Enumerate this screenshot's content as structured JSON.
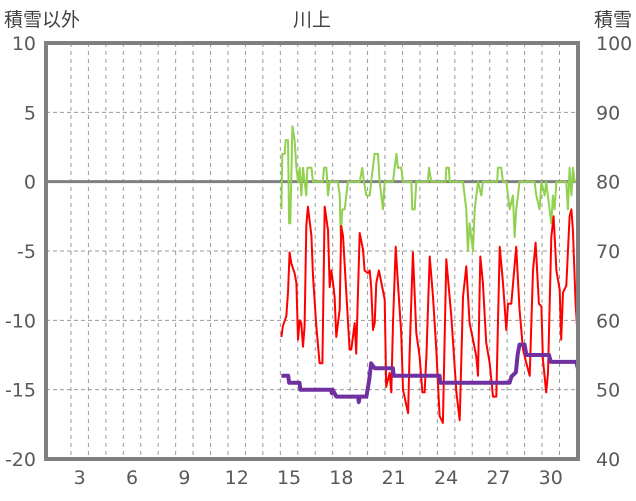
{
  "chart_data": {
    "type": "line",
    "title": "川上",
    "ylabel_left": "積雪以外",
    "ylabel_right": "積雪",
    "xlim": [
      1.07,
      31.56
    ],
    "ylim_left": [
      -20,
      10
    ],
    "ylim_right": [
      40,
      100
    ],
    "x_ticks": [
      3,
      6,
      9,
      12,
      15,
      18,
      21,
      24,
      27,
      30
    ],
    "y_ticks_left": [
      10,
      5,
      0,
      -5,
      -10,
      -15,
      -20
    ],
    "y_ticks_right": [
      100,
      90,
      80,
      70,
      60,
      50,
      40
    ],
    "grid": true,
    "colors": {
      "frame": "#808080",
      "grid": "#808080",
      "zero": "#808080"
    },
    "series": [
      {
        "name": "green",
        "axis": "left",
        "color": "#92D050",
        "points": [
          [
            14.56,
            -2
          ],
          [
            14.61,
            2
          ],
          [
            14.75,
            2
          ],
          [
            14.8,
            3
          ],
          [
            14.94,
            3
          ],
          [
            15.0,
            -3
          ],
          [
            15.07,
            -3
          ],
          [
            15.19,
            4
          ],
          [
            15.32,
            3
          ],
          [
            15.42,
            1
          ],
          [
            15.51,
            0
          ],
          [
            15.61,
            1
          ],
          [
            15.7,
            -1
          ],
          [
            15.8,
            1
          ],
          [
            15.99,
            -1
          ],
          [
            16.05,
            1
          ],
          [
            16.28,
            1
          ],
          [
            16.37,
            0
          ],
          [
            16.94,
            0
          ],
          [
            17.0,
            1
          ],
          [
            17.14,
            1
          ],
          [
            17.23,
            -1
          ],
          [
            17.33,
            0
          ],
          [
            17.8,
            0
          ],
          [
            17.9,
            -1
          ],
          [
            17.96,
            -4
          ],
          [
            18.05,
            -2
          ],
          [
            18.19,
            -2
          ],
          [
            18.28,
            -1
          ],
          [
            18.38,
            0
          ],
          [
            19.05,
            0
          ],
          [
            19.2,
            1
          ],
          [
            19.29,
            0
          ],
          [
            19.43,
            -1
          ],
          [
            19.62,
            -1
          ],
          [
            19.71,
            0
          ],
          [
            19.9,
            2
          ],
          [
            20.1,
            2
          ],
          [
            20.19,
            0
          ],
          [
            20.29,
            -1
          ],
          [
            20.38,
            -2
          ],
          [
            20.48,
            0
          ],
          [
            20.96,
            0
          ],
          [
            21.05,
            1
          ],
          [
            21.15,
            2
          ],
          [
            21.24,
            1
          ],
          [
            21.43,
            1
          ],
          [
            21.53,
            0
          ],
          [
            22.01,
            0
          ],
          [
            22.06,
            -2
          ],
          [
            22.2,
            -2
          ],
          [
            22.29,
            0
          ],
          [
            22.96,
            0
          ],
          [
            23.02,
            1
          ],
          [
            23.15,
            0
          ],
          [
            23.97,
            0
          ],
          [
            24.01,
            1
          ],
          [
            24.16,
            1
          ],
          [
            24.2,
            0
          ],
          [
            24.97,
            0
          ],
          [
            25.06,
            -1
          ],
          [
            25.16,
            -2
          ],
          [
            25.25,
            -5
          ],
          [
            25.35,
            -3
          ],
          [
            25.44,
            -4
          ],
          [
            25.54,
            -5
          ],
          [
            25.64,
            -2
          ],
          [
            25.83,
            0
          ],
          [
            26.02,
            -1
          ],
          [
            26.11,
            0
          ],
          [
            26.93,
            0
          ],
          [
            26.97,
            1
          ],
          [
            27.16,
            1
          ],
          [
            27.26,
            0
          ],
          [
            27.45,
            0
          ],
          [
            27.55,
            -1
          ],
          [
            27.64,
            -2
          ],
          [
            27.83,
            -1
          ],
          [
            27.93,
            -4
          ],
          [
            28.02,
            -2
          ],
          [
            28.12,
            -1
          ],
          [
            28.21,
            0
          ],
          [
            29.07,
            0
          ],
          [
            29.17,
            -1
          ],
          [
            29.36,
            -2
          ],
          [
            29.46,
            0
          ],
          [
            29.65,
            -1
          ],
          [
            29.74,
            0
          ],
          [
            29.93,
            -2
          ],
          [
            30.03,
            -3
          ],
          [
            30.12,
            -1
          ],
          [
            30.22,
            -2
          ],
          [
            30.32,
            0
          ],
          [
            30.89,
            0
          ],
          [
            30.98,
            -2
          ],
          [
            31.08,
            1
          ],
          [
            31.18,
            -1
          ],
          [
            31.27,
            1
          ],
          [
            31.37,
            0
          ],
          [
            31.56,
            0
          ]
        ]
      },
      {
        "name": "red",
        "axis": "left",
        "color": "#FF0000",
        "points": [
          [
            14.56,
            -11.2
          ],
          [
            14.65,
            -10.4
          ],
          [
            14.84,
            -9.7
          ],
          [
            14.94,
            -8.0
          ],
          [
            15.03,
            -5.1
          ],
          [
            15.13,
            -5.9
          ],
          [
            15.32,
            -6.6
          ],
          [
            15.42,
            -7.3
          ],
          [
            15.51,
            -11.4
          ],
          [
            15.61,
            -10.0
          ],
          [
            15.7,
            -10.2
          ],
          [
            15.8,
            -11.9
          ],
          [
            15.89,
            -10.4
          ],
          [
            15.99,
            -3.2
          ],
          [
            16.08,
            -1.8
          ],
          [
            16.28,
            -3.9
          ],
          [
            16.37,
            -6.8
          ],
          [
            16.56,
            -10.4
          ],
          [
            16.75,
            -13.1
          ],
          [
            16.91,
            -13.1
          ],
          [
            17.04,
            -1.8
          ],
          [
            17.23,
            -3.5
          ],
          [
            17.33,
            -7.6
          ],
          [
            17.42,
            -6.4
          ],
          [
            17.52,
            -7.3
          ],
          [
            17.61,
            -8.3
          ],
          [
            17.71,
            -11.2
          ],
          [
            17.9,
            -9.2
          ],
          [
            17.99,
            -3.2
          ],
          [
            18.09,
            -3.9
          ],
          [
            18.28,
            -8.0
          ],
          [
            18.47,
            -12.1
          ],
          [
            18.57,
            -12.1
          ],
          [
            18.76,
            -10.2
          ],
          [
            18.85,
            -12.4
          ],
          [
            19.05,
            -3.7
          ],
          [
            19.24,
            -4.9
          ],
          [
            19.33,
            -6.4
          ],
          [
            19.52,
            -6.6
          ],
          [
            19.62,
            -6.4
          ],
          [
            19.71,
            -7.6
          ],
          [
            19.81,
            -10.7
          ],
          [
            19.91,
            -10.2
          ],
          [
            20.0,
            -7.3
          ],
          [
            20.15,
            -6.4
          ],
          [
            20.29,
            -7.3
          ],
          [
            20.48,
            -8.5
          ],
          [
            20.57,
            -14.8
          ],
          [
            20.76,
            -13.8
          ],
          [
            20.86,
            -15.2
          ],
          [
            20.96,
            -10.2
          ],
          [
            21.11,
            -4.7
          ],
          [
            21.24,
            -7.3
          ],
          [
            21.43,
            -10.9
          ],
          [
            21.53,
            -15.0
          ],
          [
            21.82,
            -16.7
          ],
          [
            21.91,
            -12.4
          ],
          [
            22.1,
            -5.1
          ],
          [
            22.29,
            -10.9
          ],
          [
            22.48,
            -12.6
          ],
          [
            22.64,
            -15.2
          ],
          [
            22.77,
            -15.2
          ],
          [
            22.87,
            -12.6
          ],
          [
            23.06,
            -5.4
          ],
          [
            23.25,
            -8.3
          ],
          [
            23.44,
            -12.1
          ],
          [
            23.63,
            -16.9
          ],
          [
            23.82,
            -17.4
          ],
          [
            24.01,
            -5.6
          ],
          [
            24.3,
            -9.7
          ],
          [
            24.59,
            -15.2
          ],
          [
            24.78,
            -17.2
          ],
          [
            24.97,
            -8.3
          ],
          [
            25.16,
            -6.1
          ],
          [
            25.35,
            -10.2
          ],
          [
            25.54,
            -11.4
          ],
          [
            25.73,
            -12.6
          ],
          [
            25.83,
            -14.0
          ],
          [
            25.96,
            -5.4
          ],
          [
            26.11,
            -7.3
          ],
          [
            26.3,
            -11.6
          ],
          [
            26.5,
            -13.1
          ],
          [
            26.69,
            -15.5
          ],
          [
            26.88,
            -15.5
          ],
          [
            27.07,
            -4.7
          ],
          [
            27.26,
            -7.3
          ],
          [
            27.45,
            -10.7
          ],
          [
            27.55,
            -8.8
          ],
          [
            27.74,
            -8.8
          ],
          [
            28.02,
            -4.7
          ],
          [
            28.21,
            -9.2
          ],
          [
            28.41,
            -12.1
          ],
          [
            28.6,
            -13.1
          ],
          [
            28.79,
            -14.0
          ],
          [
            28.98,
            -6.4
          ],
          [
            29.13,
            -4.4
          ],
          [
            29.32,
            -8.8
          ],
          [
            29.46,
            -9.0
          ],
          [
            29.55,
            -12.8
          ],
          [
            29.74,
            -15.2
          ],
          [
            29.84,
            -13.8
          ],
          [
            30.03,
            -4.0
          ],
          [
            30.16,
            -2.5
          ],
          [
            30.32,
            -6.4
          ],
          [
            30.51,
            -7.8
          ],
          [
            30.6,
            -11.4
          ],
          [
            30.7,
            -8.0
          ],
          [
            30.89,
            -7.5
          ],
          [
            31.08,
            -2.5
          ],
          [
            31.18,
            -2.0
          ],
          [
            31.27,
            -3.5
          ],
          [
            31.42,
            -8.8
          ],
          [
            31.56,
            -11.6
          ]
        ]
      },
      {
        "name": "snow",
        "axis": "right",
        "color": "#7030A0",
        "points": [
          [
            14.56,
            52
          ],
          [
            14.95,
            52
          ],
          [
            15.0,
            51
          ],
          [
            15.6,
            51
          ],
          [
            15.65,
            50
          ],
          [
            17.4,
            50
          ],
          [
            17.45,
            49.5
          ],
          [
            17.5,
            50
          ],
          [
            17.71,
            49
          ],
          [
            18.95,
            49
          ],
          [
            19.0,
            48.2
          ],
          [
            19.05,
            49
          ],
          [
            19.43,
            49
          ],
          [
            19.6,
            51.5
          ],
          [
            19.7,
            53.8
          ],
          [
            19.9,
            53.1
          ],
          [
            20.95,
            53.1
          ],
          [
            21.0,
            52
          ],
          [
            23.63,
            52
          ],
          [
            23.66,
            51
          ],
          [
            27.64,
            51
          ],
          [
            27.75,
            51.9
          ],
          [
            28.0,
            52.5
          ],
          [
            28.1,
            55
          ],
          [
            28.21,
            56.5
          ],
          [
            28.5,
            56.5
          ],
          [
            28.6,
            55
          ],
          [
            29.9,
            55
          ],
          [
            30.0,
            54
          ],
          [
            31.46,
            54
          ],
          [
            31.56,
            53
          ]
        ]
      }
    ]
  }
}
